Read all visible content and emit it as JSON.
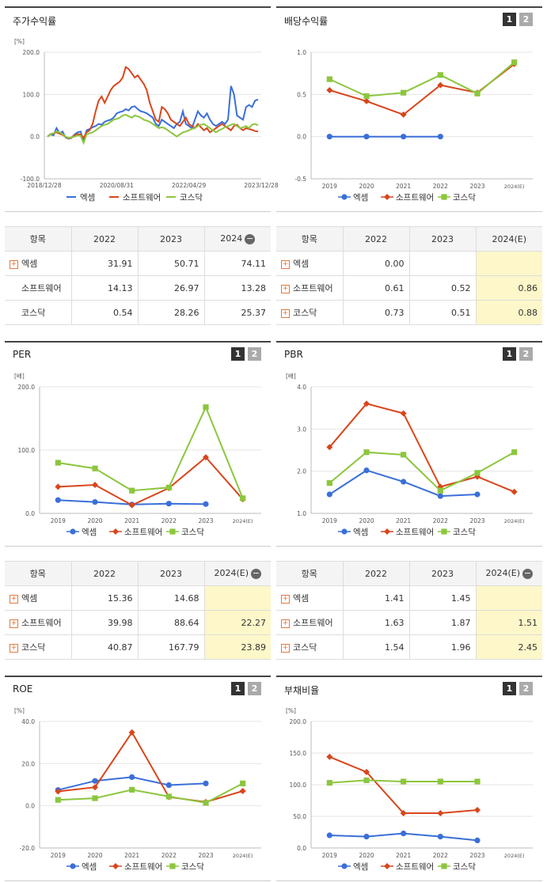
{
  "colors": {
    "s1": "#3a6fd8",
    "s2": "#d8461c",
    "s3": "#8cc63e"
  },
  "panels": [
    {
      "id": "stock",
      "title": "주가수익률",
      "unit": "[%]",
      "buttons": [],
      "chart_data": {
        "type": "line",
        "series_names": [
          "엑셈",
          "소프트웨어",
          "코스닥"
        ],
        "x_labels": [
          "2018/12/28",
          "2020/08/31",
          "2022/04/29",
          "2023/12/28"
        ],
        "y_ticks": [
          "200.0",
          "100.0",
          "0.0",
          "-100.0"
        ],
        "ylim": [
          -100,
          200
        ],
        "legend": "bottom",
        "series": [
          {
            "name": "엑셈",
            "values": [
              0,
              5,
              3,
              20,
              8,
              12,
              -2,
              -5,
              -3,
              5,
              10,
              12,
              -10,
              15,
              18,
              22,
              25,
              30,
              28,
              35,
              38,
              40,
              45,
              55,
              58,
              60,
              65,
              62,
              70,
              72,
              65,
              60,
              58,
              55,
              50,
              45,
              30,
              25,
              40,
              35,
              30,
              25,
              20,
              30,
              35,
              60,
              30,
              25,
              20,
              40,
              60,
              50,
              45,
              55,
              40,
              30,
              25,
              30,
              35,
              30,
              40,
              120,
              100,
              50,
              45,
              40,
              70,
              75,
              70,
              85,
              88
            ]
          },
          {
            "name": "소프트웨어",
            "values": [
              0,
              6,
              8,
              10,
              7,
              4,
              0,
              -5,
              -2,
              3,
              6,
              5,
              -3,
              10,
              15,
              30,
              60,
              85,
              95,
              80,
              95,
              110,
              120,
              125,
              130,
              140,
              165,
              160,
              150,
              140,
              145,
              135,
              125,
              110,
              80,
              60,
              40,
              35,
              70,
              65,
              55,
              40,
              35,
              30,
              25,
              35,
              45,
              30,
              25,
              20,
              30,
              22,
              15,
              20,
              10,
              15,
              20,
              25,
              30,
              25,
              20,
              15,
              25,
              28,
              20,
              15,
              20,
              18,
              16,
              13,
              12
            ]
          },
          {
            "name": "코스닥",
            "values": [
              0,
              5,
              8,
              12,
              10,
              6,
              0,
              -3,
              -2,
              0,
              3,
              2,
              -15,
              5,
              8,
              10,
              15,
              20,
              25,
              28,
              30,
              35,
              40,
              42,
              45,
              50,
              52,
              48,
              45,
              50,
              48,
              45,
              40,
              38,
              35,
              30,
              25,
              20,
              22,
              20,
              15,
              10,
              5,
              0,
              5,
              10,
              12,
              15,
              18,
              20,
              25,
              28,
              30,
              25,
              20,
              15,
              10,
              15,
              18,
              22,
              25,
              28,
              30,
              25,
              20,
              22,
              25,
              20,
              28,
              30,
              27
            ]
          }
        ]
      }
    },
    {
      "id": "dividend",
      "title": "배당수익률",
      "unit": "",
      "buttons": [
        "1",
        "2"
      ],
      "chart_data": {
        "type": "line",
        "series_names": [
          "엑셈",
          "소프트웨어",
          "코스닥"
        ],
        "categories": [
          "2019",
          "2020",
          "2021",
          "2022",
          "2023",
          "2024(E)"
        ],
        "y_ticks": [
          "1.0",
          "0.5",
          "0.0",
          "-0.5"
        ],
        "ylim": [
          -0.5,
          1.0
        ],
        "legend": "bottom",
        "series": [
          {
            "name": "엑셈",
            "values": [
              0.0,
              0.0,
              0.0,
              0.0,
              null,
              null
            ]
          },
          {
            "name": "소프트웨어",
            "values": [
              0.55,
              0.42,
              0.26,
              0.61,
              0.52,
              0.86
            ]
          },
          {
            "name": "코스닥",
            "values": [
              0.68,
              0.48,
              0.52,
              0.73,
              0.51,
              0.88
            ]
          }
        ]
      }
    },
    {
      "id": "per",
      "title": "PER",
      "unit": "[배]",
      "buttons": [
        "1",
        "2"
      ],
      "chart_data": {
        "type": "line",
        "series_names": [
          "엑셈",
          "소프트웨어",
          "코스닥"
        ],
        "categories": [
          "2019",
          "2020",
          "2021",
          "2022",
          "2023",
          "2024(E)"
        ],
        "y_ticks": [
          "200.0",
          "100.0",
          "0.0"
        ],
        "ylim": [
          0,
          200
        ],
        "legend": "bottom",
        "series": [
          {
            "name": "엑셈",
            "values": [
              21,
              18,
              14,
              15.36,
              14.68,
              null
            ]
          },
          {
            "name": "소프트웨어",
            "values": [
              42,
              45,
              13,
              39.98,
              88.64,
              22.27
            ]
          },
          {
            "name": "코스닥",
            "values": [
              80,
              71,
              36,
              40.87,
              167.79,
              23.89
            ]
          }
        ]
      }
    },
    {
      "id": "pbr",
      "title": "PBR",
      "unit": "[배]",
      "buttons": [
        "1",
        "2"
      ],
      "chart_data": {
        "type": "line",
        "series_names": [
          "엑셈",
          "소프트웨어",
          "코스닥"
        ],
        "categories": [
          "2019",
          "2020",
          "2021",
          "2022",
          "2023",
          "2024(E)"
        ],
        "y_ticks": [
          "4.0",
          "3.0",
          "2.0",
          "1.0"
        ],
        "ylim": [
          1,
          4
        ],
        "legend": "bottom",
        "series": [
          {
            "name": "엑셈",
            "values": [
              1.45,
              2.02,
              1.75,
              1.41,
              1.45,
              null
            ]
          },
          {
            "name": "소프트웨어",
            "values": [
              2.57,
              3.6,
              3.37,
              1.63,
              1.87,
              1.51
            ]
          },
          {
            "name": "코스닥",
            "values": [
              1.72,
              2.45,
              2.39,
              1.54,
              1.96,
              2.45
            ]
          }
        ]
      }
    },
    {
      "id": "roe",
      "title": "ROE",
      "unit": "[%]",
      "buttons": [
        "1",
        "2"
      ],
      "chart_data": {
        "type": "line",
        "series_names": [
          "엑셈",
          "소프트웨어",
          "코스닥"
        ],
        "categories": [
          "2019",
          "2020",
          "2021",
          "2022",
          "2023",
          "2024(E)"
        ],
        "y_ticks": [
          "40.0",
          "20.0",
          "0.0",
          "-20.0"
        ],
        "ylim": [
          -20,
          40
        ],
        "legend": "bottom",
        "series": [
          {
            "name": "엑셈",
            "values": [
              7.5,
              11.8,
              13.6,
              9.8,
              10.6,
              null
            ]
          },
          {
            "name": "소프트웨어",
            "values": [
              6.8,
              8.8,
              34.8,
              4.2,
              1.8,
              7.0
            ]
          },
          {
            "name": "코스닥",
            "values": [
              2.8,
              3.6,
              7.6,
              4.4,
              1.4,
              10.6
            ]
          }
        ]
      }
    },
    {
      "id": "debt",
      "title": "부채비율",
      "unit": "[%]",
      "buttons": [
        "1",
        "2"
      ],
      "chart_data": {
        "type": "line",
        "series_names": [
          "엑셈",
          "소프트웨어",
          "코스닥"
        ],
        "categories": [
          "2019",
          "2020",
          "2021",
          "2022",
          "2023",
          "2024(E)"
        ],
        "y_ticks": [
          "200.0",
          "150.0",
          "100.0",
          "50.0",
          "0.0"
        ],
        "ylim": [
          0,
          200
        ],
        "legend": "bottom",
        "series": [
          {
            "name": "엑셈",
            "values": [
              20,
              18,
              23,
              18,
              12,
              null
            ]
          },
          {
            "name": "소프트웨어",
            "values": [
              144,
              120,
              55,
              55,
              60,
              null
            ]
          },
          {
            "name": "코스닥",
            "values": [
              103,
              107,
              105,
              105,
              105,
              null
            ]
          }
        ]
      }
    }
  ],
  "tables": [
    {
      "id": "stock",
      "headers": [
        "항목",
        "2022",
        "2023",
        "2024"
      ],
      "minus_icon": true,
      "est_col": false,
      "rows": [
        {
          "label": "엑셈",
          "plus": true,
          "values": [
            "31.91",
            "50.71",
            "74.11"
          ]
        },
        {
          "label": "소프트웨어",
          "plus": false,
          "values": [
            "14.13",
            "26.97",
            "13.28"
          ]
        },
        {
          "label": "코스닥",
          "plus": false,
          "values": [
            "0.54",
            "28.26",
            "25.37"
          ]
        }
      ]
    },
    {
      "id": "dividend",
      "headers": [
        "항목",
        "2022",
        "2023",
        "2024(E)"
      ],
      "minus_icon": false,
      "est_col": true,
      "rows": [
        {
          "label": "엑셈",
          "plus": true,
          "values": [
            "0.00",
            "",
            ""
          ]
        },
        {
          "label": "소프트웨어",
          "plus": true,
          "values": [
            "0.61",
            "0.52",
            "0.86"
          ]
        },
        {
          "label": "코스닥",
          "plus": true,
          "values": [
            "0.73",
            "0.51",
            "0.88"
          ]
        }
      ]
    },
    {
      "id": "per",
      "headers": [
        "항목",
        "2022",
        "2023",
        "2024(E)"
      ],
      "minus_icon": true,
      "est_col": true,
      "rows": [
        {
          "label": "엑셈",
          "plus": true,
          "values": [
            "15.36",
            "14.68",
            ""
          ]
        },
        {
          "label": "소프트웨어",
          "plus": true,
          "values": [
            "39.98",
            "88.64",
            "22.27"
          ]
        },
        {
          "label": "코스닥",
          "plus": true,
          "values": [
            "40.87",
            "167.79",
            "23.89"
          ]
        }
      ]
    },
    {
      "id": "pbr",
      "headers": [
        "항목",
        "2022",
        "2023",
        "2024(E)"
      ],
      "minus_icon": true,
      "est_col": true,
      "rows": [
        {
          "label": "엑셈",
          "plus": true,
          "values": [
            "1.41",
            "1.45",
            ""
          ]
        },
        {
          "label": "소프트웨어",
          "plus": true,
          "values": [
            "1.63",
            "1.87",
            "1.51"
          ]
        },
        {
          "label": "코스닥",
          "plus": true,
          "values": [
            "1.54",
            "1.96",
            "2.45"
          ]
        }
      ]
    }
  ]
}
